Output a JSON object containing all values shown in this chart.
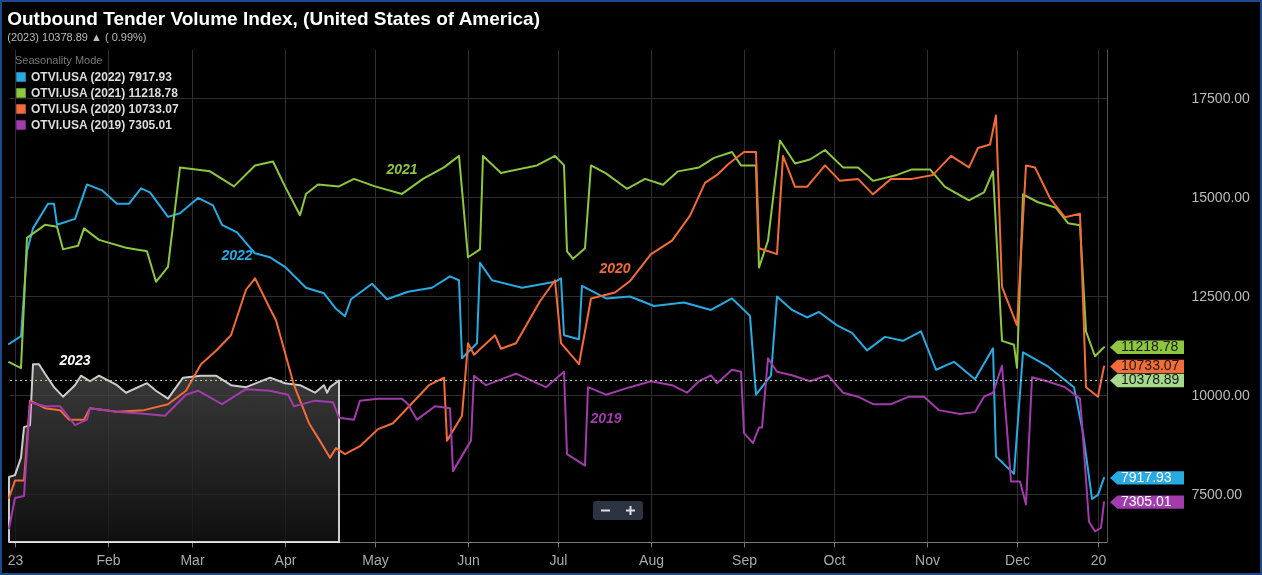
{
  "chart_data": {
    "type": "line",
    "title": "Outbound Tender Volume Index, (United States of America)",
    "subtitle": "(2023) 10378.89 ▲ ( 0.99%)",
    "legend_title": "Seasonality Mode",
    "legend": "top left",
    "grid": true,
    "xlim": [
      "2022-12-30",
      "2023-12-31"
    ],
    "xticks": [
      {
        "value": "2023-01-01",
        "label": "23"
      },
      {
        "value": "2023-02-01",
        "label": "Feb"
      },
      {
        "value": "2023-03-01",
        "label": "Mar"
      },
      {
        "value": "2023-04-01",
        "label": "Apr"
      },
      {
        "value": "2023-05-01",
        "label": "May"
      },
      {
        "value": "2023-06-01",
        "label": "Jun"
      },
      {
        "value": "2023-07-01",
        "label": "Jul"
      },
      {
        "value": "2023-08-01",
        "label": "Aug"
      },
      {
        "value": "2023-09-01",
        "label": "Sep"
      },
      {
        "value": "2023-10-01",
        "label": "Oct"
      },
      {
        "value": "2023-11-01",
        "label": "Nov"
      },
      {
        "value": "2023-12-01",
        "label": "Dec"
      },
      {
        "value": "2023-12-28",
        "label": "20"
      }
    ],
    "ylim": [
      6300,
      18750
    ],
    "yticks": [
      {
        "value": 7500,
        "label": "7500.00"
      },
      {
        "value": 10000,
        "label": "10000.00"
      },
      {
        "value": 12500,
        "label": "12500.00"
      },
      {
        "value": 15000,
        "label": "15000.00"
      },
      {
        "value": 17500,
        "label": "17500.00"
      }
    ],
    "series": [
      {
        "type": "area",
        "color": "#ffffff",
        "x": [
          "2022-12-30",
          "2023-01-01",
          "2023-01-03",
          "2023-01-04",
          "2023-01-06",
          "2023-01-07",
          "2023-01-09",
          "2023-01-11",
          "2023-01-14",
          "2023-01-17",
          "2023-01-21",
          "2023-01-23",
          "2023-01-26",
          "2023-01-29",
          "2023-02-04",
          "2023-02-07",
          "2023-02-14",
          "2023-02-17",
          "2023-02-21",
          "2023-02-26",
          "2023-03-04",
          "2023-03-09",
          "2023-03-14",
          "2023-03-19",
          "2023-03-27",
          "2023-04-01",
          "2023-04-06",
          "2023-04-11",
          "2023-04-14",
          "2023-04-15",
          "2023-04-16",
          "2023-04-19"
        ],
        "values": [
          7940,
          7990,
          8430,
          9200,
          9250,
          10790,
          10790,
          10550,
          10210,
          9970,
          10260,
          10500,
          10360,
          10500,
          10260,
          10070,
          10310,
          10120,
          9920,
          10450,
          10500,
          10500,
          10260,
          10210,
          10450,
          10310,
          10260,
          10070,
          10260,
          10070,
          10210,
          10378.89
        ]
      },
      {
        "name": "OTVI.USA (2022) 7917.93",
        "color": "#29abe2",
        "x": [
          "2022-12-30",
          "2023-01-03",
          "2023-01-05",
          "2023-01-07",
          "2023-01-12",
          "2023-01-14",
          "2023-01-15",
          "2023-01-21",
          "2023-01-25",
          "2023-01-30",
          "2023-02-04",
          "2023-02-08",
          "2023-02-12",
          "2023-02-15",
          "2023-02-21",
          "2023-02-25",
          "2023-03-03",
          "2023-03-08",
          "2023-03-11",
          "2023-03-16",
          "2023-03-22",
          "2023-03-27",
          "2023-04-01",
          "2023-04-08",
          "2023-04-14",
          "2023-04-18",
          "2023-04-21",
          "2023-04-23",
          "2023-04-30",
          "2023-05-05",
          "2023-05-12",
          "2023-05-20",
          "2023-05-26",
          "2023-05-29",
          "2023-05-30",
          "2023-06-04",
          "2023-06-05",
          "2023-06-09",
          "2023-06-19",
          "2023-06-30",
          "2023-07-02",
          "2023-07-03",
          "2023-07-08",
          "2023-07-09",
          "2023-07-17",
          "2023-07-25",
          "2023-08-02",
          "2023-08-12",
          "2023-08-21",
          "2023-08-28",
          "2023-09-03",
          "2023-09-05",
          "2023-09-10",
          "2023-09-12",
          "2023-09-17",
          "2023-09-22",
          "2023-09-26",
          "2023-10-02",
          "2023-10-07",
          "2023-10-12",
          "2023-10-18",
          "2023-10-24",
          "2023-10-30",
          "2023-11-04",
          "2023-11-10",
          "2023-11-17",
          "2023-11-23",
          "2023-11-24",
          "2023-11-30",
          "2023-12-03",
          "2023-12-11",
          "2023-12-20",
          "2023-12-23",
          "2023-12-26",
          "2023-12-28",
          "2023-12-30"
        ],
        "values": [
          11300,
          11500,
          13640,
          14220,
          14840,
          14840,
          14310,
          14460,
          15330,
          15180,
          14840,
          14840,
          15230,
          15130,
          14510,
          14600,
          14990,
          14800,
          14310,
          14120,
          13590,
          13490,
          13250,
          12720,
          12580,
          12190,
          12000,
          12430,
          12820,
          12430,
          12620,
          12720,
          13010,
          12910,
          10940,
          11320,
          13350,
          12910,
          12720,
          12870,
          12960,
          11520,
          11420,
          12770,
          12450,
          12500,
          12260,
          12350,
          12160,
          12450,
          12010,
          10020,
          10510,
          12500,
          12160,
          11970,
          12110,
          11770,
          11580,
          11140,
          11480,
          11380,
          11620,
          10650,
          10850,
          10410,
          11190,
          8460,
          8020,
          11090,
          10750,
          10210,
          9050,
          7390,
          7490,
          7917.93
        ]
      },
      {
        "name": "OTVI.USA (2021) 11218.78",
        "color": "#8dc63f",
        "x": [
          "2022-12-30",
          "2023-01-03",
          "2023-01-05",
          "2023-01-11",
          "2023-01-15",
          "2023-01-17",
          "2023-01-22",
          "2023-01-24",
          "2023-01-29",
          "2023-02-07",
          "2023-02-14",
          "2023-02-17",
          "2023-02-21",
          "2023-02-25",
          "2023-03-07",
          "2023-03-15",
          "2023-03-22",
          "2023-03-28",
          "2023-04-01",
          "2023-04-06",
          "2023-04-08",
          "2023-04-12",
          "2023-04-19",
          "2023-04-24",
          "2023-05-01",
          "2023-05-10",
          "2023-05-17",
          "2023-05-24",
          "2023-05-29",
          "2023-06-01",
          "2023-06-05",
          "2023-06-06",
          "2023-06-12",
          "2023-06-24",
          "2023-06-30",
          "2023-07-03",
          "2023-07-04",
          "2023-07-06",
          "2023-07-10",
          "2023-07-12",
          "2023-07-17",
          "2023-07-24",
          "2023-07-30",
          "2023-08-05",
          "2023-08-10",
          "2023-08-17",
          "2023-08-22",
          "2023-08-28",
          "2023-08-31",
          "2023-09-05",
          "2023-09-06",
          "2023-09-09",
          "2023-09-13",
          "2023-09-18",
          "2023-09-23",
          "2023-09-28",
          "2023-10-04",
          "2023-10-09",
          "2023-10-14",
          "2023-10-22",
          "2023-10-27",
          "2023-11-02",
          "2023-11-07",
          "2023-11-15",
          "2023-11-20",
          "2023-11-23",
          "2023-11-26",
          "2023-11-30",
          "2023-12-01",
          "2023-12-03",
          "2023-12-08",
          "2023-12-14",
          "2023-12-18",
          "2023-12-22",
          "2023-12-24",
          "2023-12-27",
          "2023-12-30"
        ],
        "values": [
          10840,
          10690,
          13980,
          14310,
          14260,
          13690,
          13780,
          14220,
          13930,
          13730,
          13640,
          12870,
          13250,
          15760,
          15660,
          15280,
          15810,
          15910,
          15280,
          14550,
          15090,
          15330,
          15280,
          15470,
          15280,
          15090,
          15470,
          15760,
          16050,
          13490,
          13690,
          16050,
          15620,
          15810,
          16050,
          15810,
          13640,
          13450,
          13720,
          15810,
          15610,
          15220,
          15470,
          15320,
          15660,
          15760,
          16000,
          16150,
          15810,
          15810,
          13230,
          13910,
          16440,
          15860,
          15960,
          16200,
          15760,
          15760,
          15420,
          15570,
          15710,
          15710,
          15270,
          14930,
          15130,
          15660,
          11380,
          11280,
          10700,
          15080,
          14880,
          14740,
          14350,
          14300,
          11620,
          10990,
          11218.78
        ]
      },
      {
        "name": "OTVI.USA (2020) 10733.07",
        "color": "#f26b38",
        "x": [
          "2022-12-30",
          "2023-01-01",
          "2023-01-04",
          "2023-01-06",
          "2023-01-11",
          "2023-01-16",
          "2023-01-19",
          "2023-01-24",
          "2023-01-26",
          "2023-02-04",
          "2023-02-13",
          "2023-02-21",
          "2023-02-27",
          "2023-03-04",
          "2023-03-09",
          "2023-03-14",
          "2023-03-19",
          "2023-03-22",
          "2023-03-27",
          "2023-03-29",
          "2023-04-04",
          "2023-04-09",
          "2023-04-13",
          "2023-04-16",
          "2023-04-18",
          "2023-04-21",
          "2023-04-26",
          "2023-05-02",
          "2023-05-07",
          "2023-05-13",
          "2023-05-19",
          "2023-05-24",
          "2023-05-25",
          "2023-05-30",
          "2023-06-01",
          "2023-06-03",
          "2023-06-10",
          "2023-06-12",
          "2023-06-17",
          "2023-06-25",
          "2023-06-30",
          "2023-07-02",
          "2023-07-08",
          "2023-07-12",
          "2023-07-20",
          "2023-07-25",
          "2023-08-01",
          "2023-08-08",
          "2023-08-14",
          "2023-08-19",
          "2023-08-23",
          "2023-08-27",
          "2023-09-01",
          "2023-09-05",
          "2023-09-06",
          "2023-09-12",
          "2023-09-14",
          "2023-09-18",
          "2023-09-22",
          "2023-09-28",
          "2023-10-03",
          "2023-10-09",
          "2023-10-14",
          "2023-10-20",
          "2023-10-27",
          "2023-11-03",
          "2023-11-09",
          "2023-11-15",
          "2023-11-18",
          "2023-11-22",
          "2023-11-24",
          "2023-11-26",
          "2023-12-01",
          "2023-12-04",
          "2023-12-07",
          "2023-12-12",
          "2023-12-17",
          "2023-12-22",
          "2023-12-24",
          "2023-12-28",
          "2023-12-30"
        ],
        "values": [
          7410,
          7850,
          7850,
          9870,
          9680,
          9630,
          9390,
          9390,
          9680,
          9590,
          9630,
          9780,
          10120,
          10790,
          11130,
          11520,
          12670,
          12960,
          12190,
          11900,
          10260,
          9300,
          8810,
          8430,
          8670,
          8520,
          8720,
          9150,
          9300,
          9780,
          10260,
          10450,
          8860,
          9490,
          11320,
          11030,
          11520,
          11180,
          11320,
          12380,
          12910,
          11320,
          10790,
          12450,
          12600,
          12890,
          13570,
          13910,
          14540,
          15370,
          15570,
          15860,
          16150,
          16150,
          13720,
          13570,
          16050,
          15270,
          15270,
          15810,
          15420,
          15470,
          15080,
          15470,
          15470,
          15570,
          16050,
          15760,
          16250,
          16340,
          17070,
          12740,
          11770,
          15810,
          15760,
          14980,
          14500,
          14590,
          10210,
          9970,
          10733.07
        ]
      },
      {
        "name": "OTVI.USA (2019) 7305.01",
        "color": "#a23bab",
        "x": [
          "2022-12-30",
          "2023-01-01",
          "2023-01-04",
          "2023-01-06",
          "2023-01-11",
          "2023-01-16",
          "2023-01-21",
          "2023-01-25",
          "2023-01-26",
          "2023-02-04",
          "2023-02-13",
          "2023-02-20",
          "2023-02-27",
          "2023-03-03",
          "2023-03-11",
          "2023-03-19",
          "2023-03-27",
          "2023-04-02",
          "2023-04-04",
          "2023-04-11",
          "2023-04-17",
          "2023-04-19",
          "2023-04-24",
          "2023-04-26",
          "2023-05-02",
          "2023-05-10",
          "2023-05-12",
          "2023-05-15",
          "2023-05-21",
          "2023-05-26",
          "2023-05-27",
          "2023-06-02",
          "2023-06-03",
          "2023-06-07",
          "2023-06-17",
          "2023-06-27",
          "2023-07-03",
          "2023-07-04",
          "2023-07-10",
          "2023-07-11",
          "2023-07-17",
          "2023-07-25",
          "2023-08-01",
          "2023-08-08",
          "2023-08-13",
          "2023-08-17",
          "2023-08-21",
          "2023-08-23",
          "2023-08-28",
          "2023-08-31",
          "2023-09-01",
          "2023-09-04",
          "2023-09-06",
          "2023-09-07",
          "2023-09-09",
          "2023-09-12",
          "2023-09-17",
          "2023-09-23",
          "2023-09-29",
          "2023-10-04",
          "2023-10-09",
          "2023-10-14",
          "2023-10-20",
          "2023-10-26",
          "2023-10-31",
          "2023-11-05",
          "2023-11-12",
          "2023-11-17",
          "2023-11-20",
          "2023-11-23",
          "2023-11-26",
          "2023-11-29",
          "2023-12-02",
          "2023-12-04",
          "2023-12-06",
          "2023-12-11",
          "2023-12-17",
          "2023-12-22",
          "2023-12-23",
          "2023-12-25",
          "2023-12-27",
          "2023-12-29",
          "2023-12-30"
        ],
        "values": [
          6640,
          7410,
          7460,
          9830,
          9730,
          9730,
          9250,
          9390,
          9680,
          9590,
          9540,
          9490,
          10020,
          10120,
          9780,
          10160,
          10120,
          10020,
          9730,
          9870,
          9830,
          9440,
          9390,
          9870,
          9920,
          9920,
          9780,
          9390,
          9730,
          9680,
          8090,
          8860,
          10500,
          10260,
          10550,
          10210,
          10600,
          8520,
          8230,
          10210,
          10020,
          10210,
          10360,
          10260,
          10070,
          10360,
          10510,
          10310,
          10650,
          10600,
          9050,
          8800,
          9190,
          9190,
          10940,
          10600,
          10510,
          10360,
          10510,
          10070,
          9970,
          9780,
          9780,
          9970,
          9970,
          9630,
          9530,
          9580,
          9970,
          10070,
          10750,
          7830,
          7830,
          7250,
          10460,
          10360,
          10210,
          9920,
          8950,
          6810,
          6570,
          6660,
          7305.01
        ]
      }
    ],
    "ref_lines": [
      {
        "axis": "y",
        "value": 10378.89,
        "label": "10378.89",
        "color": "#a5d98c",
        "line_style": "dotted"
      }
    ],
    "annotations": [
      {
        "text": "2023",
        "x": "2023-01-21",
        "y": 10260
      },
      {
        "text": "2022",
        "x": "2023-03-16",
        "y": 14120
      },
      {
        "text": "2021",
        "x": "2023-05-10",
        "y": 15090
      },
      {
        "text": "2020",
        "x": "2023-07-20",
        "y": 12600
      },
      {
        "text": "2019",
        "x": "2023-07-17",
        "y": 10020
      },
      {
        "text": "11218.78",
        "x": "2023-12-30",
        "y": 11218.78
      },
      {
        "text": "10733.07",
        "x": "2023-12-30",
        "y": 10733.07
      },
      {
        "text": "7917.93",
        "x": "2023-12-30",
        "y": 7917.93
      },
      {
        "text": "7305.01",
        "x": "2023-12-30",
        "y": 7305.01
      }
    ]
  }
}
